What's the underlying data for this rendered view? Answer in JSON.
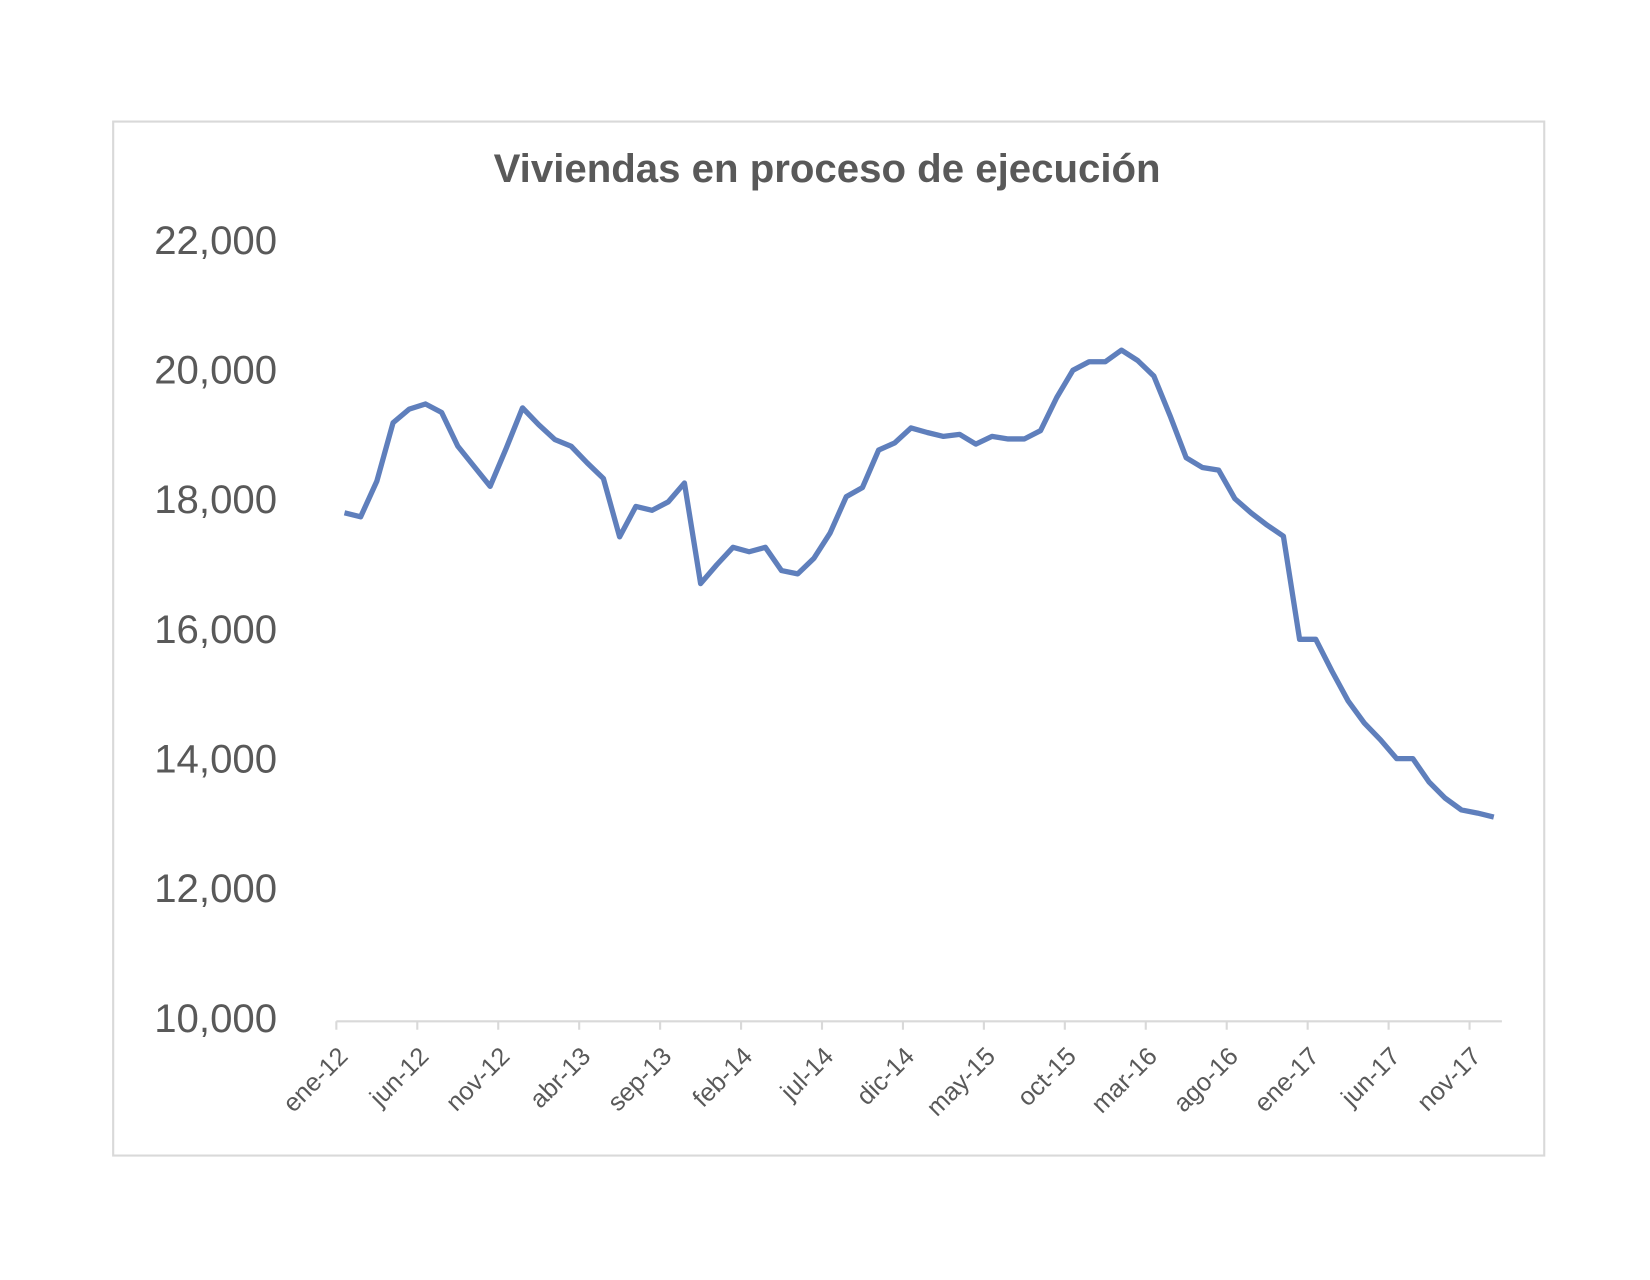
{
  "chart_data": {
    "type": "line",
    "title": "Viviendas en proceso de ejecución",
    "categories": [
      "ene-12",
      null,
      null,
      null,
      null,
      "jun-12",
      null,
      null,
      null,
      null,
      "nov-12",
      null,
      null,
      null,
      null,
      "abr-13",
      null,
      null,
      null,
      null,
      "sep-13",
      null,
      null,
      null,
      null,
      "feb-14",
      null,
      null,
      null,
      null,
      "jul-14",
      null,
      null,
      null,
      null,
      "dic-14",
      null,
      null,
      null,
      null,
      "may-15",
      null,
      null,
      null,
      null,
      "oct-15",
      null,
      null,
      null,
      null,
      "mar-16",
      null,
      null,
      null,
      null,
      "ago-16",
      null,
      null,
      null,
      null,
      "ene-17",
      null,
      null,
      null,
      null,
      "jun-17",
      null,
      null,
      null,
      null,
      "nov-17",
      null
    ],
    "series": [
      {
        "name": "Viviendas en proceso de ejecución",
        "color": "#5f7fbc",
        "values": [
          17840,
          17780,
          18330,
          19230,
          19440,
          19520,
          19390,
          18870,
          18560,
          18250,
          18840,
          19460,
          19200,
          18970,
          18870,
          18610,
          18370,
          17470,
          17940,
          17880,
          18010,
          18300,
          16750,
          17040,
          17310,
          17240,
          17310,
          16950,
          16900,
          17140,
          17530,
          18090,
          18230,
          18810,
          18920,
          19150,
          19080,
          19020,
          19050,
          18900,
          19020,
          18980,
          18980,
          19110,
          19620,
          20040,
          20170,
          20170,
          20350,
          20190,
          19950,
          19340,
          18690,
          18540,
          18500,
          18060,
          17840,
          17650,
          17480,
          15890,
          15890,
          15400,
          14940,
          14600,
          14340,
          14050,
          14050,
          13690,
          13440,
          13260,
          13210,
          13150
        ]
      }
    ],
    "ylim": [
      10000,
      22000
    ],
    "yticks": [
      {
        "value": 10000,
        "label": "10,000"
      },
      {
        "value": 12000,
        "label": "12,000"
      },
      {
        "value": 14000,
        "label": "14,000"
      },
      {
        "value": 16000,
        "label": "16,000"
      },
      {
        "value": 18000,
        "label": "18,000"
      },
      {
        "value": 20000,
        "label": "20,000"
      },
      {
        "value": 22000,
        "label": "22,000"
      }
    ],
    "grid": false
  }
}
